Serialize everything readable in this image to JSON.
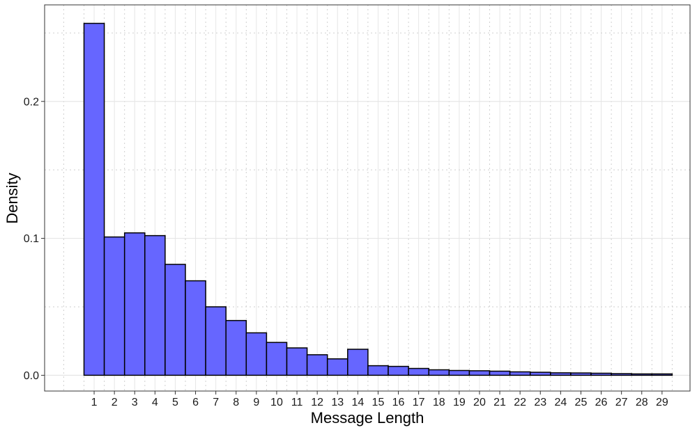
{
  "chart_data": {
    "type": "bar",
    "title": "",
    "xlabel": "Message Length",
    "ylabel": "Density",
    "categories": [
      "1",
      "2",
      "3",
      "4",
      "5",
      "6",
      "7",
      "8",
      "9",
      "10",
      "11",
      "12",
      "13",
      "14",
      "15",
      "16",
      "17",
      "18",
      "19",
      "20",
      "21",
      "22",
      "23",
      "24",
      "25",
      "26",
      "27",
      "28",
      "29"
    ],
    "values": [
      0.257,
      0.101,
      0.104,
      0.102,
      0.081,
      0.069,
      0.05,
      0.04,
      0.031,
      0.024,
      0.02,
      0.015,
      0.012,
      0.019,
      0.007,
      0.0065,
      0.005,
      0.004,
      0.0035,
      0.0033,
      0.003,
      0.0025,
      0.0022,
      0.0018,
      0.0017,
      0.0015,
      0.0012,
      0.001,
      0.001
    ],
    "ylim": [
      -0.0115,
      0.2705
    ],
    "yticks": [
      0.0,
      0.1,
      0.2
    ],
    "ytick_labels": [
      "0.0",
      "0.1",
      "0.2"
    ],
    "grid": true,
    "legend": "none",
    "colors": {
      "bar_fill": "#6666ff",
      "bar_stroke": "#000000",
      "grid_major": "#e6e6e6",
      "grid_minor": "#cfcfcf",
      "panel_border": "#333333"
    }
  }
}
